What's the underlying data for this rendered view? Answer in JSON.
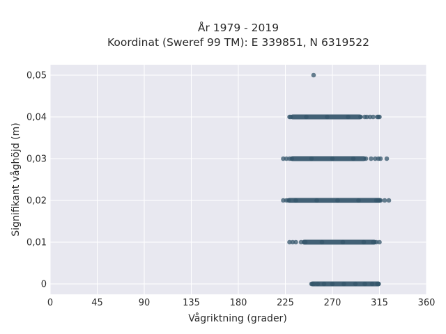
{
  "chart_data": {
    "type": "scatter",
    "title": "År 1979 - 2019",
    "subtitle": "Koordinat (Sweref 99 TM): E 339851, N 6319522",
    "xlabel": "Vågriktning (grader)",
    "ylabel": "Signifikant våghöjd (m)",
    "xlim": [
      0,
      360
    ],
    "ylim": [
      -0.0025,
      0.0525
    ],
    "xticks": [
      0,
      45,
      90,
      135,
      180,
      225,
      270,
      315,
      360
    ],
    "xtick_labels": [
      "0",
      "45",
      "90",
      "135",
      "180",
      "225",
      "270",
      "315",
      "360"
    ],
    "yticks": [
      0,
      0.01,
      0.02,
      0.03,
      0.04,
      0.05
    ],
    "ytick_labels": [
      "0",
      "0,01",
      "0,02",
      "0,03",
      "0,04",
      "0,05"
    ],
    "grid": true,
    "background_color": "#e8e8f0",
    "point_color": "#34556b",
    "bands": [
      {
        "y": 0,
        "x_dense": [
          251,
          314
        ],
        "x_points": [
          250,
          252,
          256,
          262,
          270,
          281,
          292,
          301,
          308,
          313,
          314
        ]
      },
      {
        "y": 0.01,
        "x_dense": [
          243,
          310
        ],
        "x_points": [
          229,
          232,
          235,
          240,
          244,
          260,
          280,
          300,
          309,
          312,
          315
        ]
      },
      {
        "y": 0.02,
        "x_dense": [
          229,
          315
        ],
        "x_points": [
          223,
          226,
          228,
          235,
          255,
          275,
          295,
          312,
          314,
          316,
          320,
          324
        ]
      },
      {
        "y": 0.03,
        "x_dense": [
          232,
          300
        ],
        "x_points": [
          223,
          226,
          229,
          231,
          250,
          270,
          290,
          302,
          307,
          311,
          314,
          316,
          322
        ]
      },
      {
        "y": 0.04,
        "x_dense": [
          232,
          296
        ],
        "x_points": [
          229,
          230,
          245,
          265,
          285,
          297,
          301,
          303,
          306,
          309,
          313,
          314,
          315
        ]
      },
      {
        "y": 0.05,
        "x_dense": null,
        "x_points": [
          252
        ]
      }
    ]
  }
}
